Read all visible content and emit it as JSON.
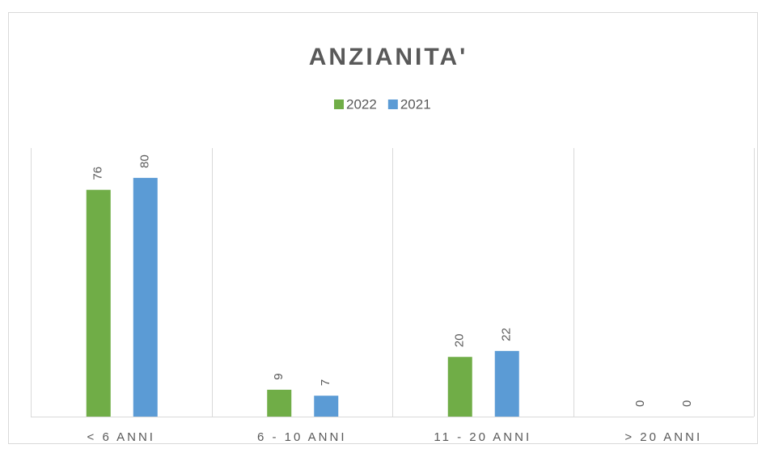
{
  "chart_data": {
    "type": "bar",
    "title": "ANZIANITA'",
    "categories": [
      "< 6 ANNI",
      "6 - 10 ANNI",
      "11 - 20 ANNI",
      "> 20 ANNI"
    ],
    "series": [
      {
        "name": "2022",
        "color": "#70ad47",
        "values": [
          76,
          9,
          20,
          0
        ]
      },
      {
        "name": "2021",
        "color": "#5b9bd5",
        "values": [
          80,
          7,
          22,
          0
        ]
      }
    ],
    "ylim": [
      0,
      90
    ],
    "legend": "top"
  }
}
